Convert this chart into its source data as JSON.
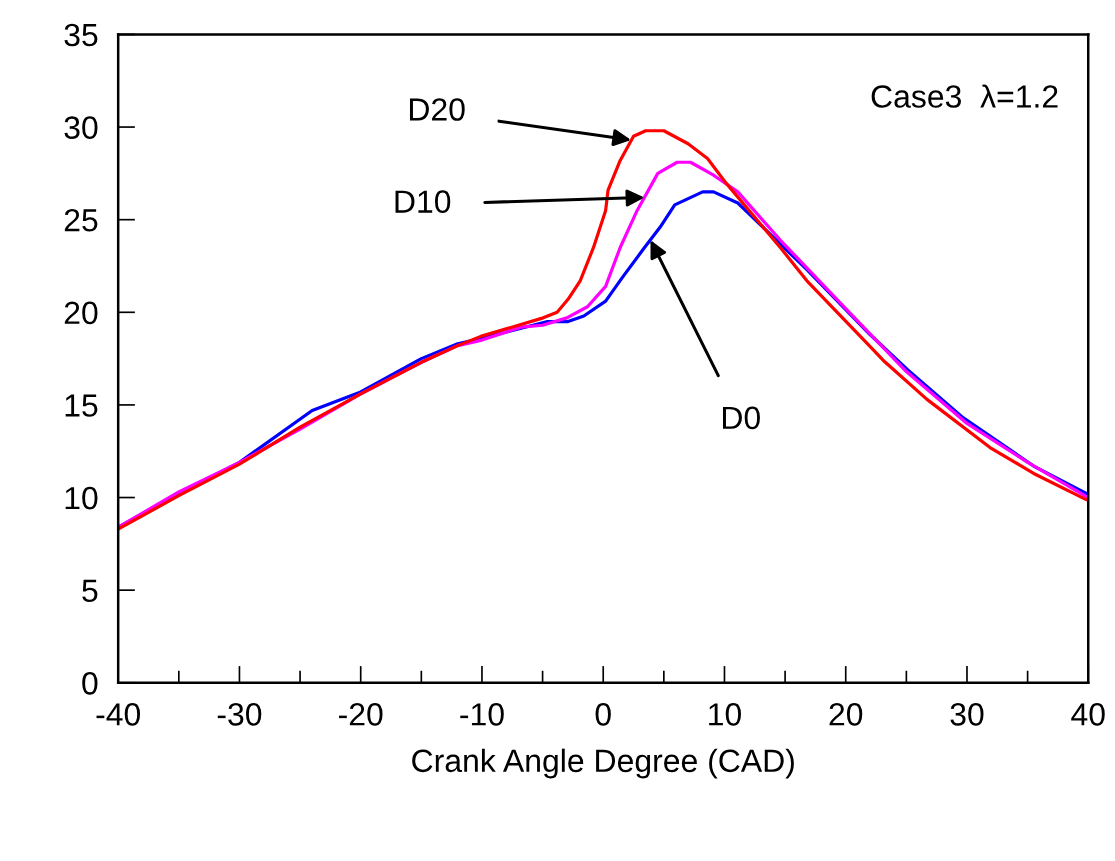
{
  "chart_data": {
    "type": "line",
    "xlabel": "Crank Angle Degree (CAD)",
    "xlim": [
      -40,
      40
    ],
    "ylim": [
      0,
      35
    ],
    "xticks": [
      -40,
      {
        "value": -35,
        "label": null
      },
      -30,
      {
        "value": -25,
        "label": null
      },
      -20,
      {
        "value": -15,
        "label": null
      },
      -10,
      {
        "value": -5,
        "label": null
      },
      0,
      {
        "value": 5,
        "label": null
      },
      10,
      {
        "value": 15,
        "label": null
      },
      20,
      {
        "value": 25,
        "label": null
      },
      30,
      {
        "value": 35,
        "label": null
      },
      40
    ],
    "yticks": [
      0,
      5,
      10,
      15,
      20,
      25,
      30,
      35
    ],
    "grid": false,
    "legend": false,
    "marker": "none",
    "line_style": "solid",
    "annotations": [
      "Case3  λ=1.2",
      {
        "text": "D20",
        "x": 2.3,
        "y": 29.3
      },
      {
        "text": "D10",
        "x": 3.4,
        "y": 26.2
      },
      {
        "text": "D0",
        "x": 3.9,
        "y": 23.9
      }
    ],
    "series": [
      {
        "color": "#0000ff",
        "x": [
          -40,
          -35,
          -30,
          -24,
          -20,
          -15,
          -12,
          -10,
          -7,
          -4.6,
          -2.9,
          -1.6,
          0.2,
          1.6,
          3.3,
          4.7,
          5.9,
          8.2,
          9.1,
          11.1,
          11.9,
          16.8,
          22,
          25.1,
          29.7,
          35.5,
          39.9
        ],
        "values": [
          8.4,
          10.2,
          11.9,
          14.7,
          15.7,
          17.5,
          18.3,
          18.6,
          19.1,
          19.5,
          19.5,
          19.8,
          20.6,
          21.9,
          23.4,
          24.6,
          25.8,
          26.5,
          26.5,
          25.9,
          25.4,
          22.3,
          18.8,
          16.9,
          14.3,
          11.7,
          10.2
        ]
      },
      {
        "color": "#ff00ff",
        "x": [
          -40,
          -35,
          -30,
          -25,
          -20,
          -15,
          -12,
          -10,
          -6.8,
          -5,
          -3,
          -1.3,
          0.2,
          1.4,
          2.8,
          4.5,
          6.1,
          7.2,
          9.1,
          11.1,
          14.6,
          20,
          25,
          30,
          35,
          40
        ],
        "values": [
          8.4,
          10.3,
          11.9,
          13.7,
          15.6,
          17.3,
          18.2,
          18.5,
          19.2,
          19.3,
          19.7,
          20.3,
          21.4,
          23.5,
          25.5,
          27.5,
          28.1,
          28.1,
          27.4,
          26.5,
          23.9,
          20.2,
          16.8,
          14.0,
          11.9,
          10.0
        ]
      },
      {
        "color": "#ff0000",
        "x": [
          -40,
          -35,
          -30,
          -25,
          -20,
          -15,
          -12,
          -10.1,
          -4.95,
          -3.8,
          -2.9,
          -1.9,
          -0.8,
          0.2,
          0.4,
          1.4,
          2.5,
          3.5,
          5.0,
          7.0,
          8.6,
          10.1,
          14.6,
          16.8,
          21.8,
          23.1,
          26.7,
          31.9,
          35.5,
          39.8
        ],
        "values": [
          8.3,
          10.1,
          11.8,
          13.8,
          15.6,
          17.3,
          18.2,
          18.7,
          19.7,
          20.0,
          20.7,
          21.7,
          23.5,
          25.5,
          26.6,
          28.2,
          29.5,
          29.8,
          29.8,
          29.1,
          28.3,
          27.0,
          23.5,
          21.7,
          18.3,
          17.4,
          15.3,
          12.7,
          11.3,
          9.9
        ]
      }
    ]
  }
}
